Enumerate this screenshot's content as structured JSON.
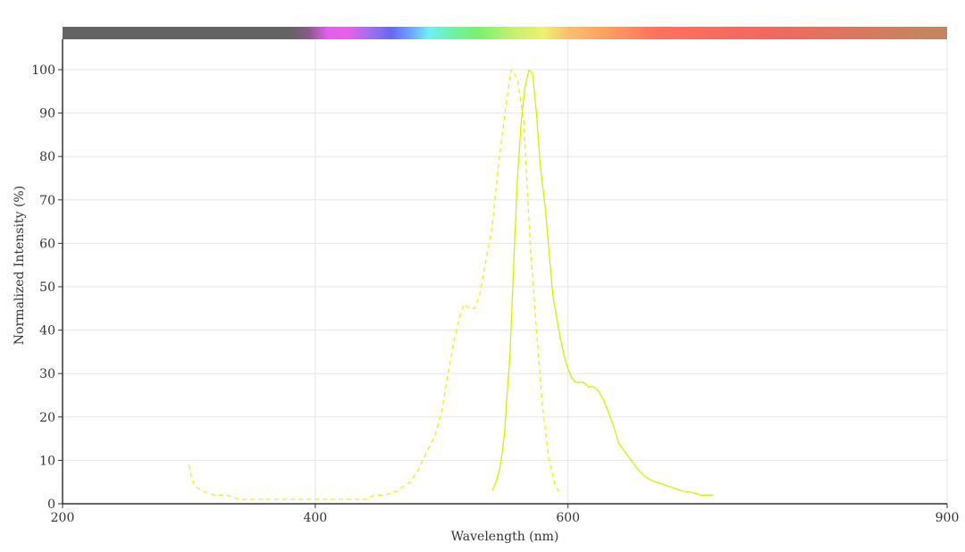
{
  "chart_data": {
    "type": "line",
    "title": "",
    "xlabel": "Wavelength (nm)",
    "ylabel": "Normalized Intensity (%)",
    "xlim": [
      200,
      900
    ],
    "ylim": [
      0,
      100
    ],
    "x_ticks": [
      200,
      400,
      600,
      900
    ],
    "y_ticks": [
      0,
      10,
      20,
      30,
      40,
      50,
      60,
      70,
      80,
      90,
      100
    ],
    "grid": true,
    "legend": "none",
    "spectrum_bar": {
      "stops": [
        {
          "nm": 200,
          "color": "#636363"
        },
        {
          "nm": 380,
          "color": "#636363"
        },
        {
          "nm": 395,
          "color": "#8a5a8a"
        },
        {
          "nm": 410,
          "color": "#e060f0"
        },
        {
          "nm": 425,
          "color": "#e860e8"
        },
        {
          "nm": 445,
          "color": "#9a70f0"
        },
        {
          "nm": 460,
          "color": "#6868f0"
        },
        {
          "nm": 475,
          "color": "#70a0ff"
        },
        {
          "nm": 490,
          "color": "#70f0f0"
        },
        {
          "nm": 510,
          "color": "#70f0a0"
        },
        {
          "nm": 530,
          "color": "#7cf070"
        },
        {
          "nm": 555,
          "color": "#c0f070"
        },
        {
          "nm": 580,
          "color": "#f0f070"
        },
        {
          "nm": 600,
          "color": "#f8c070"
        },
        {
          "nm": 630,
          "color": "#ffa060"
        },
        {
          "nm": 670,
          "color": "#ff7060"
        },
        {
          "nm": 760,
          "color": "#f06860"
        },
        {
          "nm": 900,
          "color": "#c08860"
        }
      ]
    },
    "series": [
      {
        "role": "excitation",
        "color": "#e8f020",
        "dashed": true,
        "points": [
          [
            300,
            9
          ],
          [
            302,
            6
          ],
          [
            305,
            4
          ],
          [
            310,
            3
          ],
          [
            315,
            2.5
          ],
          [
            320,
            2
          ],
          [
            330,
            2
          ],
          [
            335,
            1.5
          ],
          [
            340,
            1
          ],
          [
            360,
            1
          ],
          [
            380,
            1
          ],
          [
            400,
            1
          ],
          [
            420,
            1
          ],
          [
            440,
            1
          ],
          [
            443,
            1.5
          ],
          [
            448,
            2
          ],
          [
            455,
            2
          ],
          [
            460,
            2.5
          ],
          [
            465,
            3
          ],
          [
            470,
            4
          ],
          [
            475,
            5
          ],
          [
            480,
            7
          ],
          [
            485,
            10
          ],
          [
            490,
            13
          ],
          [
            495,
            16
          ],
          [
            500,
            21
          ],
          [
            505,
            30
          ],
          [
            510,
            38
          ],
          [
            515,
            44
          ],
          [
            518,
            46
          ],
          [
            522,
            45
          ],
          [
            526,
            45
          ],
          [
            530,
            48
          ],
          [
            535,
            56
          ],
          [
            540,
            64
          ],
          [
            545,
            78
          ],
          [
            550,
            90
          ],
          [
            555,
            100
          ],
          [
            560,
            98
          ],
          [
            565,
            88
          ],
          [
            570,
            60
          ],
          [
            575,
            40
          ],
          [
            580,
            22
          ],
          [
            585,
            10
          ],
          [
            590,
            4
          ],
          [
            595,
            2
          ]
        ]
      },
      {
        "role": "emission",
        "color": "#d4f000",
        "dashed": false,
        "points": [
          [
            540,
            3
          ],
          [
            543,
            5
          ],
          [
            546,
            8
          ],
          [
            548,
            12
          ],
          [
            550,
            17
          ],
          [
            552,
            26
          ],
          [
            554,
            34
          ],
          [
            556,
            48
          ],
          [
            558,
            62
          ],
          [
            560,
            75
          ],
          [
            563,
            88
          ],
          [
            566,
            96
          ],
          [
            569,
            100
          ],
          [
            572,
            99
          ],
          [
            575,
            90
          ],
          [
            578,
            78
          ],
          [
            582,
            68
          ],
          [
            585,
            58
          ],
          [
            588,
            48
          ],
          [
            591,
            43
          ],
          [
            594,
            38
          ],
          [
            597,
            34
          ],
          [
            600,
            31
          ],
          [
            603,
            29
          ],
          [
            606,
            28
          ],
          [
            612,
            28
          ],
          [
            616,
            27
          ],
          [
            620,
            27
          ],
          [
            624,
            26
          ],
          [
            628,
            24
          ],
          [
            632,
            21
          ],
          [
            636,
            18
          ],
          [
            640,
            14
          ],
          [
            645,
            12
          ],
          [
            650,
            10
          ],
          [
            655,
            8
          ],
          [
            660,
            6.5
          ],
          [
            665,
            5.5
          ],
          [
            670,
            5
          ],
          [
            675,
            4.5
          ],
          [
            680,
            4
          ],
          [
            690,
            3
          ],
          [
            700,
            2.5
          ],
          [
            705,
            2
          ],
          [
            715,
            2
          ]
        ]
      }
    ]
  }
}
